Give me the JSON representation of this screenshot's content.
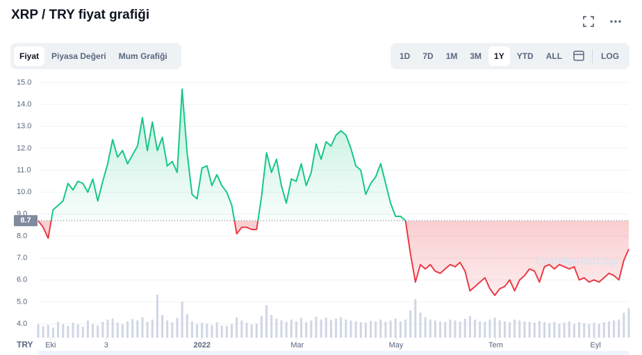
{
  "chart_data": {
    "type": "baseline-line",
    "title": "XRP / TRY fiyat grafiği",
    "tabs": [
      "Fiyat",
      "Piyasa Değeri",
      "Mum Grafiği"
    ],
    "ranges": [
      "1D",
      "7D",
      "1M",
      "3M",
      "1Y",
      "YTD",
      "ALL"
    ],
    "log_button": "LOG",
    "watermark": "CoinMarketCap",
    "currency_label": "TRY",
    "baseline": {
      "value": 8.7,
      "label": "8.7"
    },
    "up_color": "#16c784",
    "down_color": "#ea3943",
    "volume_color": "#cfd6e4",
    "xlim": [
      0,
      119
    ],
    "xticks": [
      {
        "value": 2.5,
        "label": "Eki"
      },
      {
        "value": 13.7,
        "label": "3"
      },
      {
        "value": 33,
        "label": "2022"
      },
      {
        "value": 52.2,
        "label": "Mar"
      },
      {
        "value": 72.1,
        "label": "May"
      },
      {
        "value": 92.2,
        "label": "Tem"
      },
      {
        "value": 112.3,
        "label": "Eyl"
      }
    ],
    "ylim": [
      4,
      15
    ],
    "yticks": [
      {
        "value": 4,
        "label": "4.0"
      },
      {
        "value": 5,
        "label": "5.0"
      },
      {
        "value": 6,
        "label": "6.0"
      },
      {
        "value": 7,
        "label": "7.0"
      },
      {
        "value": 8,
        "label": "8.0"
      },
      {
        "value": 9,
        "label": "9.0"
      },
      {
        "value": 10,
        "label": "10.0"
      },
      {
        "value": 11,
        "label": "11.0"
      },
      {
        "value": 12,
        "label": "12.0"
      },
      {
        "value": 13,
        "label": "13.0"
      },
      {
        "value": 14,
        "label": "14.0"
      },
      {
        "value": 15,
        "label": "15.0"
      }
    ],
    "grid": true,
    "values": [
      8.7,
      8.4,
      7.9,
      9.2,
      9.4,
      9.6,
      10.4,
      10.1,
      10.5,
      10.4,
      10.0,
      10.6,
      9.6,
      10.5,
      11.3,
      12.4,
      11.6,
      11.9,
      11.3,
      11.7,
      12.1,
      13.4,
      11.9,
      13.2,
      11.9,
      12.5,
      11.2,
      11.4,
      10.9,
      14.7,
      11.8,
      9.9,
      9.7,
      11.1,
      11.2,
      10.3,
      10.8,
      10.3,
      10.0,
      9.4,
      8.1,
      8.4,
      8.4,
      8.3,
      8.3,
      9.8,
      11.8,
      10.9,
      11.5,
      10.3,
      9.5,
      10.6,
      10.5,
      11.3,
      10.3,
      10.9,
      12.2,
      11.5,
      12.3,
      12.1,
      12.6,
      12.8,
      12.6,
      12.0,
      11.2,
      11.0,
      9.9,
      10.4,
      10.7,
      11.3,
      10.4,
      9.5,
      8.9,
      8.9,
      8.7,
      7.2,
      5.9,
      6.7,
      6.5,
      6.7,
      6.4,
      6.3,
      6.5,
      6.7,
      6.6,
      6.8,
      6.4,
      5.5,
      5.7,
      5.9,
      6.1,
      5.6,
      5.3,
      5.6,
      5.7,
      6.0,
      5.5,
      6.0,
      6.2,
      6.5,
      6.4,
      5.9,
      6.6,
      6.7,
      6.5,
      6.7,
      6.6,
      6.5,
      6.6,
      6.0,
      6.1,
      5.9,
      6.0,
      5.9,
      6.1,
      6.3,
      6.2,
      6.0,
      6.9,
      7.4
    ],
    "volume": [
      30,
      25,
      28,
      22,
      35,
      30,
      26,
      33,
      29,
      24,
      38,
      30,
      27,
      35,
      40,
      42,
      33,
      30,
      36,
      41,
      38,
      45,
      35,
      40,
      95,
      50,
      38,
      34,
      44,
      80,
      52,
      36,
      30,
      33,
      31,
      28,
      34,
      27,
      26,
      30,
      45,
      38,
      33,
      29,
      31,
      48,
      72,
      50,
      42,
      38,
      35,
      40,
      36,
      44,
      34,
      38,
      46,
      40,
      44,
      39,
      42,
      45,
      40,
      38,
      36,
      34,
      33,
      37,
      36,
      40,
      35,
      38,
      42,
      36,
      40,
      60,
      85,
      55,
      45,
      40,
      38,
      36,
      35,
      40,
      38,
      36,
      42,
      48,
      40,
      36,
      35,
      40,
      44,
      38,
      36,
      34,
      40,
      38,
      36,
      35,
      33,
      37,
      34,
      32,
      35,
      31,
      33,
      36,
      30,
      34,
      32,
      30,
      33,
      31,
      34,
      36,
      38,
      40,
      55,
      65
    ]
  }
}
